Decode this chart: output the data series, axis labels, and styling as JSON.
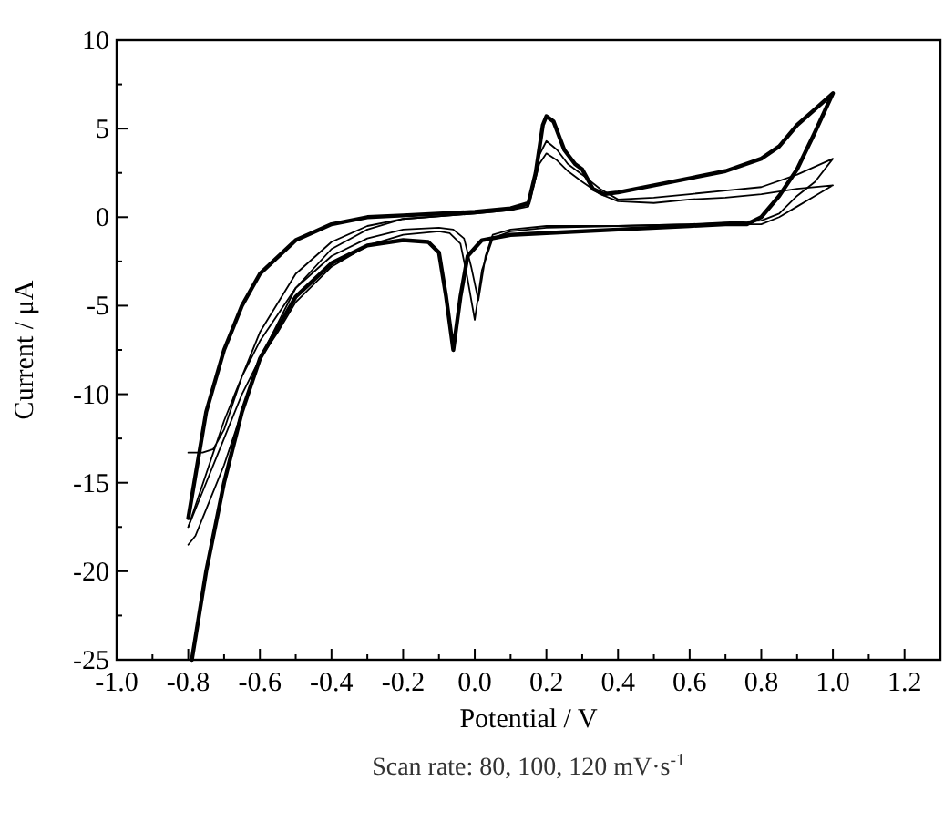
{
  "chart_data": {
    "type": "line",
    "xlabel": "Potential / V",
    "ylabel": "Current / μA",
    "annotations": [
      "Scan rate: 80, 100, 120 mV·s$^{-1}$"
    ],
    "xlim": [
      -1.0,
      1.3
    ],
    "ylim": [
      -25,
      10
    ],
    "xticks": [
      {
        "value": -1.0,
        "label": "-1.0"
      },
      {
        "value": -0.9,
        "label": null
      },
      {
        "value": -0.8,
        "label": "-0.8"
      },
      {
        "value": -0.7,
        "label": null
      },
      {
        "value": -0.6,
        "label": "-0.6"
      },
      {
        "value": -0.5,
        "label": null
      },
      {
        "value": -0.4,
        "label": "-0.4"
      },
      {
        "value": -0.3,
        "label": null
      },
      {
        "value": -0.2,
        "label": "-0.2"
      },
      {
        "value": -0.1,
        "label": null
      },
      {
        "value": 0,
        "label": "0.0"
      },
      {
        "value": 0.1,
        "label": null
      },
      {
        "value": 0.2,
        "label": "0.2"
      },
      {
        "value": 0.3,
        "label": null
      },
      {
        "value": 0.4,
        "label": "0.4"
      },
      {
        "value": 0.5,
        "label": null
      },
      {
        "value": 0.6,
        "label": "0.6"
      },
      {
        "value": 0.7,
        "label": null
      },
      {
        "value": 0.8,
        "label": "0.8"
      },
      {
        "value": 0.9,
        "label": null
      },
      {
        "value": 1.0,
        "label": "1.0"
      },
      {
        "value": 1.1,
        "label": null
      },
      {
        "value": 1.2,
        "label": "1.2"
      }
    ],
    "yticks": [
      -25,
      {
        "value": -22.5,
        "label": null
      },
      -20,
      {
        "value": -17.5,
        "label": null
      },
      -15,
      {
        "value": -12.5,
        "label": null
      },
      -10,
      {
        "value": -7.5,
        "label": null
      },
      -5,
      {
        "value": -2.5,
        "label": null
      },
      0,
      {
        "value": 2.5,
        "label": null
      },
      5,
      {
        "value": 7.5,
        "label": null
      },
      10
    ],
    "line_style": "solid",
    "series": [
      {
        "color": "#000000",
        "x": [
          -0.8,
          -0.75,
          -0.7,
          -0.65,
          -0.6,
          -0.5,
          -0.4,
          -0.3,
          -0.2,
          0,
          0.1,
          0.15,
          0.17,
          0.19,
          0.2,
          0.22,
          0.25,
          0.28,
          0.3,
          0.33,
          0.36,
          0.4,
          0.5,
          0.6,
          0.7,
          0.8,
          0.85,
          0.9,
          0.95,
          1.0,
          0.95,
          0.9,
          0.85,
          0.8,
          0.76,
          0.7,
          0.6,
          0.4,
          0.2,
          0.1,
          0.02,
          -0.02,
          -0.04,
          -0.06,
          -0.08,
          -0.1,
          -0.13,
          -0.2,
          -0.3,
          -0.4,
          -0.5,
          -0.6,
          -0.65,
          -0.7,
          -0.75,
          -0.79
        ],
        "values": [
          -17,
          -11,
          -7.5,
          -5,
          -3.2,
          -1.3,
          -0.4,
          0,
          0.1,
          0.3,
          0.5,
          0.8,
          2.5,
          5.2,
          5.7,
          5.4,
          3.8,
          3.0,
          2.7,
          1.6,
          1.3,
          1.4,
          1.8,
          2.2,
          2.6,
          3.3,
          4.0,
          5.2,
          6.1,
          7.0,
          4.8,
          2.7,
          1.2,
          0,
          -0.4,
          -0.4,
          -0.5,
          -0.7,
          -0.9,
          -1.0,
          -1.3,
          -2.2,
          -4.5,
          -7.5,
          -4.5,
          -2,
          -1.4,
          -1.3,
          -1.6,
          -2.6,
          -4.5,
          -8,
          -11,
          -15,
          -20,
          -25
        ]
      },
      {
        "color": "#000000",
        "x": [
          -0.8,
          -0.78,
          -0.75,
          -0.7,
          -0.65,
          -0.6,
          -0.5,
          -0.4,
          -0.3,
          -0.2,
          0,
          0.1,
          0.15,
          0.18,
          0.2,
          0.23,
          0.26,
          0.3,
          0.35,
          0.4,
          0.5,
          0.6,
          0.7,
          0.8,
          0.9,
          1.0,
          0.95,
          0.9,
          0.85,
          0.8,
          0.7,
          0.6,
          0.4,
          0.2,
          0.1,
          0.05,
          0.02,
          0,
          -0.02,
          -0.04,
          -0.07,
          -0.1,
          -0.2,
          -0.3,
          -0.4,
          -0.5,
          -0.55,
          -0.6,
          -0.65,
          -0.7,
          -0.75,
          -0.8
        ],
        "values": [
          -18.5,
          -18,
          -16.5,
          -14,
          -11,
          -8,
          -4,
          -1.8,
          -0.7,
          -0.1,
          0.2,
          0.4,
          0.7,
          3.5,
          4.3,
          3.8,
          3.0,
          2.4,
          1.6,
          1.0,
          1.1,
          1.3,
          1.5,
          1.7,
          2.4,
          3.3,
          2.0,
          1.2,
          0.2,
          -0.2,
          -0.3,
          -0.4,
          -0.5,
          -0.6,
          -0.8,
          -1.2,
          -3,
          -5.8,
          -3.5,
          -1.5,
          -0.9,
          -0.8,
          -1.0,
          -1.6,
          -2.8,
          -4.8,
          -6.5,
          -8,
          -10,
          -12.5,
          -15,
          -17.5
        ]
      },
      {
        "color": "#000000",
        "x": [
          -0.8,
          -0.76,
          -0.73,
          -0.7,
          -0.65,
          -0.6,
          -0.5,
          -0.4,
          -0.3,
          -0.2,
          0,
          0.1,
          0.15,
          0.18,
          0.2,
          0.23,
          0.26,
          0.3,
          0.35,
          0.4,
          0.5,
          0.6,
          0.7,
          0.8,
          0.9,
          1.0,
          0.95,
          0.9,
          0.85,
          0.8,
          0.7,
          0.6,
          0.4,
          0.2,
          0.1,
          0.05,
          0.03,
          0.01,
          -0.01,
          -0.03,
          -0.06,
          -0.1,
          -0.2,
          -0.3,
          -0.4,
          -0.5,
          -0.6,
          -0.65,
          -0.7,
          -0.75,
          -0.8
        ],
        "values": [
          -13.3,
          -13.3,
          -13.1,
          -12,
          -9,
          -6.5,
          -3.2,
          -1.4,
          -0.5,
          -0.1,
          0.2,
          0.4,
          0.6,
          3.0,
          3.6,
          3.2,
          2.6,
          2.0,
          1.3,
          0.9,
          0.8,
          1.0,
          1.1,
          1.3,
          1.6,
          1.8,
          1.2,
          0.6,
          0.0,
          -0.4,
          -0.4,
          -0.4,
          -0.5,
          -0.5,
          -0.7,
          -1.0,
          -2.2,
          -4.7,
          -2.8,
          -1.2,
          -0.7,
          -0.6,
          -0.7,
          -1.2,
          -2.2,
          -4,
          -7,
          -9,
          -11.5,
          -14.5,
          -17.5
        ]
      }
    ]
  }
}
